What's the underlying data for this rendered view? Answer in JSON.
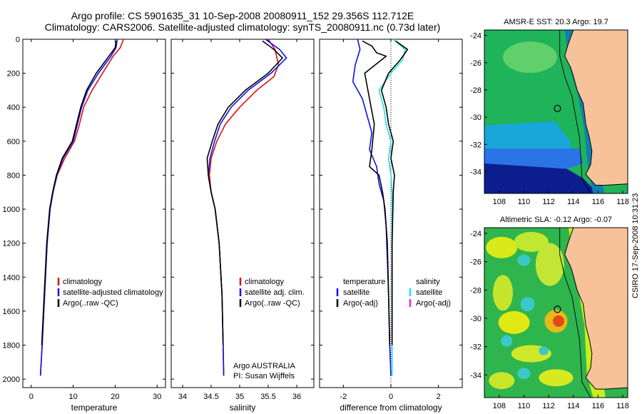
{
  "header": {
    "title_line1": "Argo profile: CS 5901635_31 10-Sep-2008 20080911_152 29.356S 112.712E",
    "title_line2": "Climatology: CARS2006. Satellite-adjusted climatology: synTS_20080911.nc (0.73d later)"
  },
  "side_label": "CSIRO 17-Sep-2008 10:31:23",
  "colors": {
    "climatology": "#dd1111",
    "satellite": "#1010ee",
    "argo": "#000000",
    "cyan": "#22e0e8",
    "magenta": "#ee22ee",
    "land": "#f7c19a"
  },
  "chart_data": [
    {
      "type": "line",
      "xlabel": "temperature",
      "xlim": [
        -2,
        32
      ],
      "ylim": [
        0,
        2050
      ],
      "xticks": [
        0,
        10,
        20,
        30
      ],
      "yticks": [
        0,
        200,
        400,
        600,
        800,
        1000,
        1200,
        1400,
        1600,
        1800,
        2000
      ],
      "legend": {
        "position": "lower-right",
        "entries": [
          "climatology",
          "satellite-adjusted climatology",
          "Argo(..raw -QC)"
        ]
      },
      "series": [
        {
          "name": "climatology",
          "x": [
            22,
            21.2,
            19.5,
            17,
            14.5,
            12.5,
            11.5,
            10.3,
            8,
            6.2,
            5.2,
            4.5,
            3.8,
            3.2,
            2.6,
            2.2
          ],
          "y": [
            0,
            50,
            100,
            200,
            300,
            400,
            500,
            600,
            700,
            800,
            900,
            1000,
            1200,
            1500,
            1800,
            1980
          ]
        },
        {
          "name": "satellite-adjusted climatology",
          "x": [
            20.5,
            20.2,
            19,
            16,
            13.5,
            12,
            11,
            10,
            7.6,
            6.1,
            5.2,
            4.5,
            3.8,
            3.2,
            2.6,
            2.2
          ],
          "y": [
            0,
            50,
            100,
            200,
            300,
            400,
            500,
            600,
            700,
            800,
            900,
            1000,
            1200,
            1500,
            1800,
            1980
          ]
        },
        {
          "name": "Argo(..raw -QC)",
          "x": [
            20.2,
            20,
            18.5,
            15.5,
            13.2,
            11.8,
            10.8,
            9.8,
            7.4,
            6,
            5.1,
            4.4,
            3.7,
            3.1,
            2.5
          ],
          "y": [
            10,
            50,
            100,
            200,
            300,
            400,
            500,
            600,
            700,
            800,
            900,
            1000,
            1200,
            1500,
            1800
          ]
        }
      ]
    },
    {
      "type": "line",
      "xlabel": "salinity",
      "xlim": [
        33.8,
        36.3
      ],
      "ylim": [
        0,
        2050
      ],
      "xticks": [
        34,
        34.5,
        35,
        35.5,
        36
      ],
      "legend": {
        "position": "lower-right",
        "entries": [
          "climatology",
          "satellite adj. clim.",
          "Argo(..raw -QC)"
        ]
      },
      "annotation": [
        "Argo AUSTRALIA",
        "PI: Susan Wijffels"
      ],
      "series": [
        {
          "name": "climatology",
          "x": [
            35.5,
            35.62,
            35.68,
            35.6,
            35.3,
            35,
            34.75,
            34.6,
            34.5,
            34.47,
            34.5,
            34.57,
            34.64,
            34.69,
            34.71,
            34.72
          ],
          "y": [
            0,
            60,
            150,
            220,
            300,
            400,
            500,
            600,
            700,
            800,
            900,
            1000,
            1200,
            1500,
            1800,
            1980
          ]
        },
        {
          "name": "satellite adj. clim.",
          "x": [
            35.45,
            35.7,
            35.82,
            35.55,
            35.15,
            34.85,
            34.66,
            34.56,
            34.48,
            34.45,
            34.5,
            34.57,
            34.64,
            34.69,
            34.71,
            34.72
          ],
          "y": [
            0,
            60,
            110,
            200,
            300,
            400,
            500,
            600,
            700,
            800,
            900,
            1000,
            1200,
            1500,
            1800,
            1980
          ]
        },
        {
          "name": "Argo(..raw -QC)",
          "x": [
            35.4,
            35.6,
            35.75,
            35.5,
            35.1,
            34.8,
            34.62,
            34.52,
            34.43,
            34.45,
            34.5,
            34.57,
            34.64,
            34.69,
            34.71
          ],
          "y": [
            10,
            60,
            110,
            200,
            300,
            400,
            500,
            600,
            700,
            800,
            900,
            1000,
            1200,
            1500,
            1800
          ]
        }
      ]
    },
    {
      "type": "line",
      "xlabel": "difference from climatology",
      "xlim": [
        -3,
        3
      ],
      "ylim": [
        0,
        2050
      ],
      "xticks": [
        -2,
        0,
        2
      ],
      "legend": {
        "position": "lower-center",
        "entries": [
          "temperature",
          "satellite",
          "Argo(-adj)",
          "salinity",
          "satellite",
          "Argo(-adj)"
        ]
      },
      "series": [
        {
          "name": "temperature satellite",
          "x": [
            -1.4,
            -1.3,
            -1.5,
            -1.6,
            -1.2,
            -1,
            -0.8,
            -0.9,
            -0.6,
            -0.5,
            -0.3,
            -0.2,
            -0.15,
            -0.1,
            -0.05,
            0
          ],
          "y": [
            0,
            60,
            150,
            250,
            350,
            450,
            550,
            650,
            750,
            850,
            950,
            1100,
            1300,
            1500,
            1800,
            1980
          ]
        },
        {
          "name": "temperature Argo(-adj)",
          "x": [
            -1.2,
            -0.8,
            -0.6,
            -0.2,
            -1.1,
            -0.9,
            -0.7,
            -0.8,
            -0.9,
            -0.5,
            -0.35,
            -0.25,
            -0.15,
            -0.1,
            -0.05
          ],
          "y": [
            10,
            40,
            80,
            100,
            200,
            350,
            500,
            650,
            750,
            800,
            900,
            1000,
            1200,
            1500,
            1800
          ]
        },
        {
          "name": "salinity satellite",
          "x": [
            0.1,
            0.6,
            0.5,
            0,
            -0.5,
            -0.3,
            -0.2,
            0,
            -0.1,
            0,
            0.05,
            0.05,
            0.05,
            0.05,
            0.05
          ],
          "y": [
            0,
            60,
            120,
            200,
            300,
            400,
            500,
            600,
            700,
            800,
            900,
            1100,
            1400,
            1700,
            1980
          ]
        },
        {
          "name": "salinity Argo(-adj)",
          "x": [
            0.2,
            0.7,
            0.4,
            -0.1,
            -0.4,
            -0.2,
            -0.1,
            0.1,
            0,
            0.15,
            0.1,
            0.05,
            0.05,
            0.05
          ],
          "y": [
            10,
            60,
            120,
            200,
            300,
            400,
            500,
            600,
            700,
            800,
            900,
            1200,
            1500,
            1800
          ]
        }
      ]
    },
    {
      "type": "heatmap",
      "title": "AMSR-E SST: 20.3 Argo: 19.7",
      "xlim": [
        106.8,
        118.4
      ],
      "ylim": [
        -35.6,
        -23.6
      ],
      "xticks": [
        108,
        110,
        112,
        114,
        116,
        118
      ],
      "yticks": [
        -24,
        -26,
        -28,
        -30,
        -32,
        -34
      ],
      "float_position": [
        112.71,
        -29.36
      ]
    },
    {
      "type": "heatmap",
      "title": "Altimetric SLA: -0.12 Argo: -0.07",
      "xlim": [
        106.8,
        118.4
      ],
      "ylim": [
        -35.6,
        -23.6
      ],
      "xticks": [
        108,
        110,
        112,
        114,
        116,
        118
      ],
      "yticks": [
        -24,
        -26,
        -28,
        -30,
        -32,
        -34
      ],
      "float_position": [
        112.71,
        -29.36
      ]
    }
  ]
}
